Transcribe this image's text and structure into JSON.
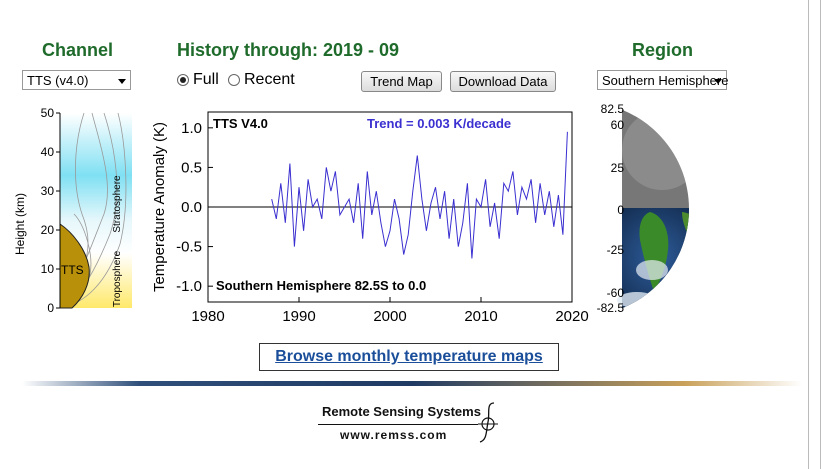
{
  "headers": {
    "channel": "Channel",
    "history": "History through: 2019 - 09",
    "region": "Region"
  },
  "channel_select": {
    "value": "TTS (v4.0)"
  },
  "region_select": {
    "value": "Southern Hemisphere"
  },
  "range_options": {
    "full": "Full",
    "recent": "Recent",
    "selected": "full"
  },
  "buttons": {
    "trend_map": "Trend Map",
    "download": "Download Data"
  },
  "weighting": {
    "y_ticks": [
      "50",
      "40",
      "30",
      "20",
      "10",
      "0"
    ],
    "y_label": "Height (km)",
    "channel_label": "TTS",
    "stratosphere": "Stratosphere",
    "troposphere": "Troposphere"
  },
  "chart_data": {
    "type": "line",
    "title": "TTS V4.0",
    "annotation_trend": "Trend =  0.003 K/decade",
    "annotation_region": "Southern Hemisphere  82.5S to    0.0",
    "ylabel": "Temperature Anomaly (K)",
    "xlabel": "",
    "xlim": [
      1980,
      2020
    ],
    "ylim": [
      -1.2,
      1.2
    ],
    "x_ticks": [
      "1980",
      "1990",
      "2000",
      "2010",
      "2020"
    ],
    "y_ticks": [
      "1.0",
      "0.5",
      "0.0",
      "-0.5",
      "-1.0"
    ],
    "x_tick_values": [
      1980,
      1990,
      2000,
      2010,
      2020
    ],
    "y_tick_values": [
      1.0,
      0.5,
      0.0,
      -0.5,
      -1.0
    ],
    "series": [
      {
        "color": "#3a2fd0",
        "x": [
          1987.0,
          1987.5,
          1988.0,
          1988.5,
          1989.0,
          1989.5,
          1990.0,
          1990.5,
          1991.0,
          1991.5,
          1992.0,
          1992.5,
          1993.0,
          1993.5,
          1994.0,
          1994.5,
          1995.0,
          1995.5,
          1996.0,
          1996.5,
          1997.0,
          1997.5,
          1998.0,
          1998.5,
          1999.0,
          1999.5,
          2000.0,
          2000.5,
          2001.0,
          2001.5,
          2002.0,
          2002.5,
          2003.0,
          2003.5,
          2004.0,
          2004.5,
          2005.0,
          2005.5,
          2006.0,
          2006.5,
          2007.0,
          2007.5,
          2008.0,
          2008.5,
          2009.0,
          2009.5,
          2010.0,
          2010.5,
          2011.0,
          2011.5,
          2012.0,
          2012.5,
          2013.0,
          2013.5,
          2014.0,
          2014.5,
          2015.0,
          2015.5,
          2016.0,
          2016.5,
          2017.0,
          2017.5,
          2018.0,
          2018.5,
          2019.0,
          2019.5
        ],
        "y": [
          0.1,
          -0.15,
          0.3,
          -0.2,
          0.55,
          -0.5,
          0.25,
          -0.3,
          0.35,
          0.0,
          0.1,
          -0.15,
          0.5,
          0.2,
          0.45,
          -0.1,
          0.0,
          0.1,
          -0.2,
          0.3,
          -0.4,
          0.45,
          -0.1,
          0.2,
          -0.2,
          -0.5,
          -0.3,
          0.1,
          -0.15,
          -0.6,
          -0.35,
          0.2,
          0.65,
          0.1,
          -0.3,
          0.05,
          0.25,
          -0.15,
          0.2,
          -0.4,
          0.1,
          -0.5,
          -0.2,
          0.3,
          -0.65,
          0.1,
          0.0,
          0.35,
          -0.25,
          0.05,
          -0.4,
          0.3,
          0.2,
          0.45,
          -0.1,
          0.25,
          0.1,
          0.35,
          -0.2,
          0.3,
          -0.1,
          0.2,
          -0.25,
          0.15,
          -0.35,
          0.95
        ]
      }
    ]
  },
  "globe": {
    "y_ticks": [
      "82.5",
      "60",
      "25",
      "0",
      "-25",
      "-60",
      "-82.5"
    ]
  },
  "browse_link": "Browse monthly temperature maps",
  "footer": {
    "company": "Remote Sensing Systems",
    "url": "www.remss.com"
  }
}
